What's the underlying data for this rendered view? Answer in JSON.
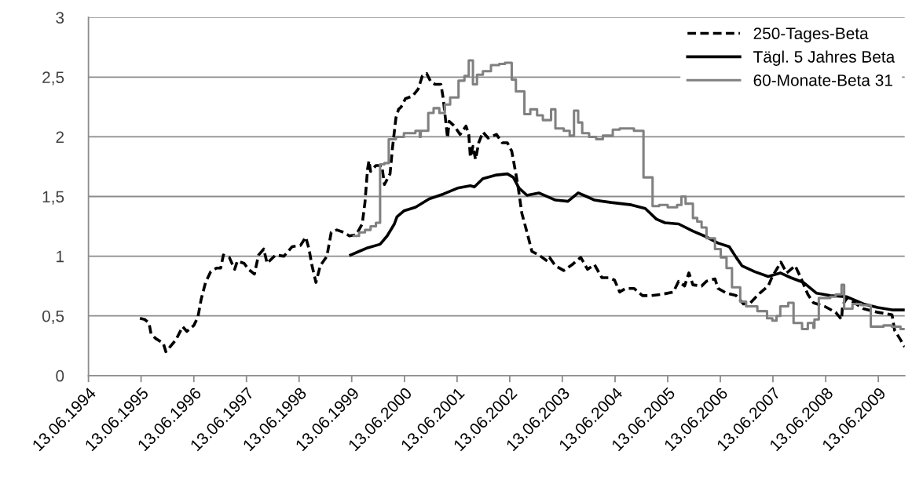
{
  "chart_data": {
    "type": "line",
    "xlim": [
      "1994-06-13",
      "2009-12-13"
    ],
    "xticks": [
      {
        "value": "1994-06-13",
        "label": "13.06.1994"
      },
      {
        "value": "1995-06-13",
        "label": "13.06.1995"
      },
      {
        "value": "1996-06-13",
        "label": "13.06.1996"
      },
      {
        "value": "1997-06-13",
        "label": "13.06.1997"
      },
      {
        "value": "1998-06-13",
        "label": "13.06.1998"
      },
      {
        "value": "1999-06-13",
        "label": "13.06.1999"
      },
      {
        "value": "2000-06-13",
        "label": "13.06.2000"
      },
      {
        "value": "2001-06-13",
        "label": "13.06.2001"
      },
      {
        "value": "2002-06-13",
        "label": "13.06.2002"
      },
      {
        "value": "2003-06-13",
        "label": "13.06.2003"
      },
      {
        "value": "2004-06-13",
        "label": "13.06.2004"
      },
      {
        "value": "2005-06-13",
        "label": "13.06.2005"
      },
      {
        "value": "2006-06-13",
        "label": "13.06.2006"
      },
      {
        "value": "2007-06-13",
        "label": "13.06.2007"
      },
      {
        "value": "2008-06-13",
        "label": "13.06.2008"
      },
      {
        "value": "2009-06-13",
        "label": "13.06.2009"
      }
    ],
    "ylim": [
      0,
      3
    ],
    "yticks": [
      0,
      {
        "value": 0.5,
        "label": "0,5"
      },
      1,
      {
        "value": 1.5,
        "label": "1,5"
      },
      2,
      {
        "value": 2.5,
        "label": "2,5"
      },
      3
    ],
    "grid": "y",
    "legend": "top right",
    "series": [
      {
        "name": "250-Tages-Beta",
        "color": "#000000",
        "line_style": "dashed",
        "x": [
          "1995-06-05",
          "1995-07-08",
          "1995-08-07",
          "1995-08-21",
          "1995-09-23",
          "1995-11-14",
          "1995-12-02",
          "1996-02-10",
          "1996-03-27",
          "1996-04-26",
          "1996-06-13",
          "1996-07-11",
          "1996-08-03",
          "1996-09-02",
          "1996-10-08",
          "1996-11-17",
          "1996-12-16",
          "1997-01-04",
          "1997-02-14",
          "1997-03-23",
          "1997-04-11",
          "1997-05-28",
          "1997-06-27",
          "1997-08-07",
          "1997-09-05",
          "1997-10-11",
          "1997-11-03",
          "1998-01-01",
          "1998-02-28",
          "1998-04-26",
          "1998-06-23",
          "1998-07-29",
          "1998-08-21",
          "1998-09-09",
          "1998-10-08",
          "1998-11-07",
          "1998-12-23",
          "1999-01-22",
          "1999-03-02",
          "1999-04-19",
          "1999-05-28",
          "1999-07-15",
          "1999-08-25",
          "1999-09-13",
          "1999-10-01",
          "1999-10-11",
          "1999-10-22",
          "1999-11-28",
          "2000-01-08",
          "2000-01-26",
          "2000-03-05",
          "2000-03-23",
          "2000-04-15",
          "2000-05-03",
          "2000-05-21",
          "2000-06-20",
          "2000-08-07",
          "2000-09-16",
          "2000-10-15",
          "2000-11-14",
          "2000-12-13",
          "2001-01-11",
          "2001-02-21",
          "2001-03-09",
          "2001-04-08",
          "2001-04-19",
          "2001-05-25",
          "2001-07-04",
          "2001-08-14",
          "2001-09-02",
          "2001-09-13",
          "2001-10-01",
          "2001-10-19",
          "2001-11-10",
          "2001-12-09",
          "2002-01-15",
          "2002-03-13",
          "2002-04-22",
          "2002-05-28",
          "2002-06-27",
          "2002-07-26",
          "2002-08-14",
          "2002-09-05",
          "2002-10-11",
          "2002-11-14",
          "2003-01-01",
          "2003-02-28",
          "2003-03-16",
          "2003-04-26",
          "2003-06-23",
          "2003-08-21",
          "2003-10-19",
          "2003-12-05",
          "2004-01-22",
          "2004-03-13",
          "2004-04-29",
          "2004-06-09",
          "2004-07-15",
          "2004-08-25",
          "2004-10-22",
          "2004-12-20",
          "2005-02-17",
          "2005-05-03",
          "2005-07-22",
          "2005-08-28",
          "2005-10-08",
          "2005-11-07",
          "2005-12-05",
          "2006-02-03",
          "2006-03-09",
          "2006-05-07",
          "2006-05-28",
          "2006-07-26",
          "2006-10-01",
          "2006-11-21",
          "2007-01-08",
          "2007-03-13",
          "2007-05-11",
          "2007-06-09",
          "2007-08-07",
          "2007-09-16",
          "2007-11-14",
          "2007-12-23",
          "2008-02-10",
          "2008-03-20",
          "2008-06-05",
          "2008-08-21",
          "2008-10-01",
          "2008-10-08",
          "2008-11-07",
          "2009-03-02",
          "2009-06-09",
          "2009-09-16",
          "2009-10-04",
          "2009-11-14",
          "2009-12-13"
        ],
        "values": [
          0.48,
          0.47,
          0.44,
          0.35,
          0.31,
          0.27,
          0.2,
          0.3,
          0.41,
          0.37,
          0.42,
          0.49,
          0.64,
          0.78,
          0.87,
          0.9,
          0.9,
          1.01,
          0.99,
          0.89,
          0.96,
          0.94,
          0.89,
          0.85,
          1.01,
          1.06,
          0.94,
          1.01,
          1.0,
          1.08,
          1.09,
          1.16,
          1.06,
          0.93,
          0.78,
          0.92,
          1.0,
          1.2,
          1.22,
          1.2,
          1.17,
          1.18,
          1.27,
          1.45,
          1.73,
          1.8,
          1.71,
          1.76,
          1.76,
          1.6,
          1.69,
          1.92,
          2.16,
          2.23,
          2.25,
          2.32,
          2.34,
          2.4,
          2.51,
          2.53,
          2.46,
          2.44,
          2.44,
          2.32,
          1.99,
          2.13,
          2.09,
          2.02,
          2.09,
          2.02,
          1.83,
          1.92,
          1.81,
          1.95,
          2.04,
          1.99,
          2.02,
          1.95,
          1.95,
          1.88,
          1.69,
          1.55,
          1.36,
          1.2,
          1.04,
          1.01,
          0.96,
          0.99,
          0.92,
          0.88,
          0.93,
          0.99,
          0.89,
          0.93,
          0.82,
          0.82,
          0.8,
          0.7,
          0.73,
          0.73,
          0.67,
          0.67,
          0.68,
          0.7,
          0.79,
          0.75,
          0.86,
          0.76,
          0.75,
          0.79,
          0.81,
          0.73,
          0.69,
          0.67,
          0.6,
          0.61,
          0.69,
          0.75,
          0.83,
          0.95,
          0.86,
          0.92,
          0.82,
          0.68,
          0.61,
          0.58,
          0.53,
          0.47,
          0.59,
          0.65,
          0.56,
          0.53,
          0.51,
          0.38,
          0.3,
          0.24
        ]
      },
      {
        "name": "Tägl. 5 Jahres Beta",
        "color": "#000000",
        "line_style": "solid",
        "x": [
          "1999-06-05",
          "1999-08-03",
          "1999-10-01",
          "1999-12-27",
          "2000-02-14",
          "2000-04-04",
          "2000-04-22",
          "2000-06-09",
          "2000-08-28",
          "2000-12-02",
          "2001-03-09",
          "2001-06-16",
          "2001-09-13",
          "2001-10-11",
          "2001-12-09",
          "2002-03-13",
          "2002-05-28",
          "2002-07-08",
          "2002-08-17",
          "2002-10-11",
          "2003-01-01",
          "2003-04-26",
          "2003-07-22",
          "2003-10-01",
          "2003-11-28",
          "2004-01-22",
          "2004-05-17",
          "2004-10-04",
          "2005-01-08",
          "2005-03-27",
          "2005-05-25",
          "2005-08-28",
          "2005-12-05",
          "2006-02-21",
          "2006-05-28",
          "2006-08-14",
          "2006-10-01",
          "2006-11-10",
          "2007-02-07",
          "2007-05-11",
          "2007-08-03",
          "2007-10-15",
          "2008-01-11",
          "2008-04-11",
          "2008-07-15",
          "2008-11-07",
          "2009-03-02",
          "2009-06-09",
          "2009-09-16",
          "2009-12-13"
        ],
        "values": [
          1.01,
          1.04,
          1.07,
          1.1,
          1.17,
          1.27,
          1.33,
          1.38,
          1.41,
          1.48,
          1.52,
          1.57,
          1.59,
          1.58,
          1.65,
          1.68,
          1.69,
          1.66,
          1.57,
          1.51,
          1.53,
          1.47,
          1.46,
          1.53,
          1.5,
          1.47,
          1.45,
          1.43,
          1.4,
          1.31,
          1.28,
          1.27,
          1.21,
          1.17,
          1.11,
          1.08,
          0.99,
          0.92,
          0.87,
          0.83,
          0.86,
          0.82,
          0.78,
          0.69,
          0.67,
          0.66,
          0.6,
          0.57,
          0.55,
          0.55
        ]
      },
      {
        "name": "60-Monate-Beta 31",
        "color": "#808080",
        "type": "step",
        "line_style": "solid",
        "x": [
          "1999-06-27",
          "1999-08-03",
          "1999-09-13",
          "1999-10-22",
          "1999-11-28",
          "1999-12-27",
          "2000-01-26",
          "2000-02-25",
          "2000-04-15",
          "2000-06-09",
          "2000-08-28",
          "2000-09-27",
          "2000-10-04",
          "2000-11-25",
          "2001-01-01",
          "2001-02-10",
          "2001-03-20",
          "2001-04-26",
          "2001-06-23",
          "2001-08-03",
          "2001-09-02",
          "2001-10-01",
          "2001-10-29",
          "2001-12-09",
          "2002-02-03",
          "2002-04-01",
          "2002-05-11",
          "2002-06-27",
          "2002-07-26",
          "2002-09-23",
          "2002-11-03",
          "2002-12-20",
          "2003-01-29",
          "2003-03-27",
          "2003-04-26",
          "2003-06-23",
          "2003-08-03",
          "2003-09-02",
          "2003-10-01",
          "2003-10-29",
          "2003-12-16",
          "2004-02-03",
          "2004-03-20",
          "2004-05-28",
          "2004-07-15",
          "2004-10-22",
          "2004-12-27",
          "2005-02-28",
          "2005-04-15",
          "2005-06-13",
          "2005-08-17",
          "2005-09-16",
          "2005-10-15",
          "2005-12-05",
          "2006-01-04",
          "2006-02-03",
          "2006-03-09",
          "2006-05-07",
          "2006-06-16",
          "2006-07-26",
          "2006-09-02",
          "2006-10-29",
          "2006-12-09",
          "2007-02-25",
          "2007-05-03",
          "2007-06-09",
          "2007-07-08",
          "2007-08-03",
          "2007-09-27",
          "2007-11-03",
          "2008-01-01",
          "2008-02-10",
          "2008-03-20",
          "2008-03-27",
          "2008-04-26",
          "2008-07-15",
          "2008-08-21",
          "2008-10-01",
          "2008-10-19",
          "2008-12-16",
          "2009-02-14",
          "2009-04-22",
          "2009-07-19",
          "2009-09-16",
          "2009-11-14",
          "2009-12-13"
        ],
        "values": [
          1.17,
          1.2,
          1.22,
          1.25,
          1.28,
          1.77,
          1.78,
          1.98,
          2.0,
          2.03,
          2.05,
          2.0,
          2.05,
          2.2,
          2.24,
          2.2,
          2.27,
          2.33,
          2.47,
          2.51,
          2.64,
          2.44,
          2.52,
          2.55,
          2.6,
          2.61,
          2.62,
          2.48,
          2.38,
          2.19,
          2.23,
          2.18,
          2.14,
          2.23,
          2.07,
          2.05,
          2.01,
          2.22,
          2.12,
          2.03,
          2.0,
          1.98,
          2.01,
          2.06,
          2.07,
          2.05,
          1.66,
          1.42,
          1.43,
          1.41,
          1.43,
          1.5,
          1.44,
          1.32,
          1.29,
          1.24,
          1.15,
          1.06,
          0.99,
          0.9,
          0.74,
          0.62,
          0.58,
          0.54,
          0.48,
          0.46,
          0.5,
          0.58,
          0.61,
          0.44,
          0.39,
          0.44,
          0.4,
          0.47,
          0.65,
          0.66,
          0.68,
          0.76,
          0.56,
          0.6,
          0.59,
          0.41,
          0.42,
          0.41,
          0.39,
          0.39
        ]
      }
    ]
  }
}
